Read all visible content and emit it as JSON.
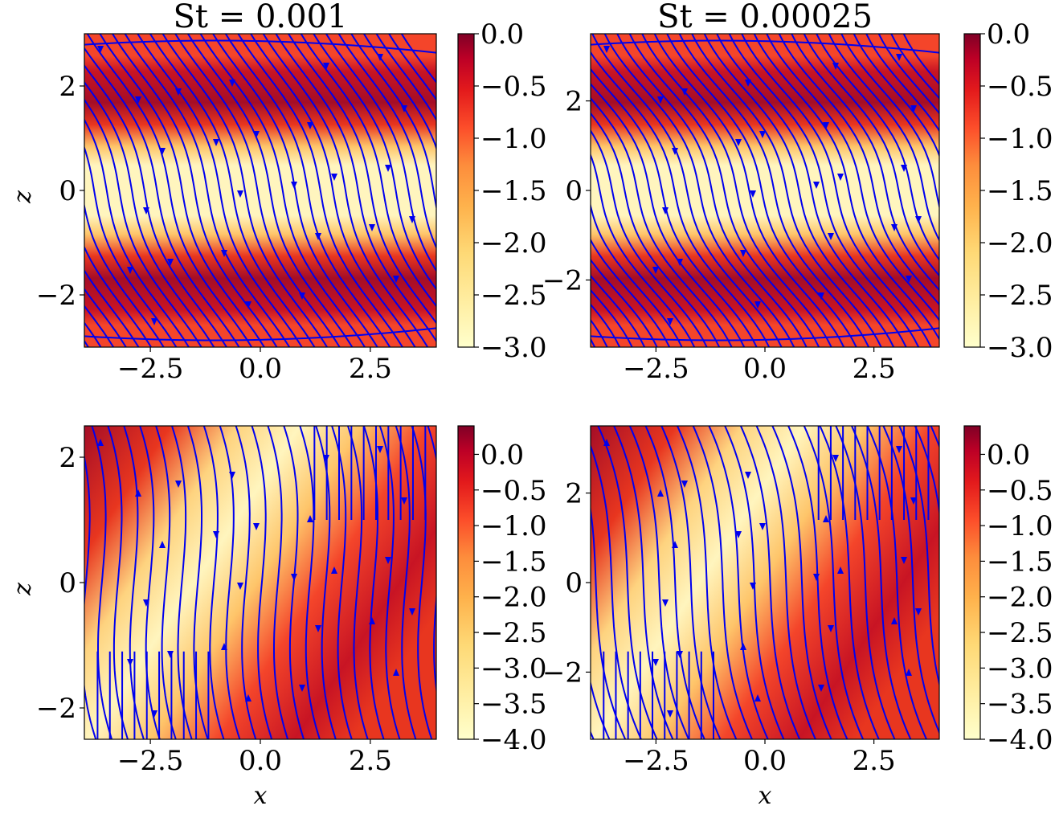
{
  "chart_data": [
    {
      "type": "heatmap",
      "title": "St = 0.001",
      "xlabel": "",
      "ylabel": "z",
      "xlim": [
        -4,
        4
      ],
      "ylim": [
        -3,
        3
      ],
      "xticks": [
        "−2.5",
        "0.0",
        "2.5"
      ],
      "yticks": [
        "2",
        "0",
        "−2"
      ],
      "colorbar": {
        "min": -3.0,
        "max": 0.0,
        "ticks": [
          "0.0",
          "−0.5",
          "−1.0",
          "−1.5",
          "−2.0",
          "−2.5",
          "−3.0"
        ]
      },
      "overlay": "streamlines"
    },
    {
      "type": "heatmap",
      "title": "St = 0.00025",
      "xlabel": "",
      "ylabel": "",
      "xlim": [
        -4,
        4
      ],
      "ylim": [
        -3.5,
        3.5
      ],
      "xticks": [
        "−2.5",
        "0.0",
        "2.5"
      ],
      "yticks": [
        "2",
        "0",
        "−2"
      ],
      "colorbar": {
        "min": -3.0,
        "max": 0.0,
        "ticks": [
          "0.0",
          "−0.5",
          "−1.0",
          "−1.5",
          "−2.0",
          "−2.5",
          "−3.0"
        ]
      },
      "overlay": "streamlines"
    },
    {
      "type": "heatmap",
      "title": "",
      "xlabel": "x",
      "ylabel": "z",
      "xlim": [
        -4,
        4
      ],
      "ylim": [
        -2.5,
        2.5
      ],
      "xticks": [
        "−2.5",
        "0.0",
        "2.5"
      ],
      "yticks": [
        "2",
        "0",
        "−2"
      ],
      "colorbar": {
        "min": -4.0,
        "max": 0.4,
        "ticks": [
          "0.0",
          "−0.5",
          "−1.0",
          "−1.5",
          "−2.0",
          "−2.5",
          "−3.0",
          "−3.5",
          "−4.0"
        ]
      },
      "overlay": "streamlines"
    },
    {
      "type": "heatmap",
      "title": "",
      "xlabel": "x",
      "ylabel": "",
      "xlim": [
        -4,
        4
      ],
      "ylim": [
        -3.5,
        3.5
      ],
      "xticks": [
        "−2.5",
        "0.0",
        "2.5"
      ],
      "yticks": [
        "2",
        "0",
        "−2"
      ],
      "colorbar": {
        "min": -4.0,
        "max": 0.4,
        "ticks": [
          "0.0",
          "−0.5",
          "−1.0",
          "−1.5",
          "−2.0",
          "−2.5",
          "−3.0",
          "−3.5",
          "−4.0"
        ]
      },
      "overlay": "streamlines"
    }
  ],
  "colors": {
    "streamline": "#0000ee",
    "cmap_low": "#ffffcc",
    "cmap_high": "#800026"
  }
}
